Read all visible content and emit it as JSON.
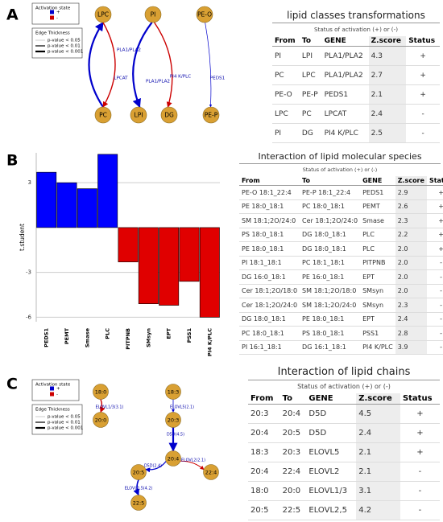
{
  "panel_labels": [
    "A",
    "B",
    "C"
  ],
  "panel_a": {
    "legend": {
      "activation_title": "Activation state",
      "activation_items": [
        "+",
        "-"
      ],
      "thickness_title": "Edge Thickness",
      "thickness_items": [
        "p-value < 0.05",
        "p-value < 0.01",
        "p-value < 0.001"
      ]
    },
    "nodes": [
      "LPC",
      "PI",
      "PE-O",
      "PC",
      "LPI",
      "DG",
      "PE-P"
    ],
    "edges": [
      "PLA1/PLA2",
      "LPCAT",
      "PLA1/PLA2",
      "PI4 K/PLC",
      "PEDS1"
    ],
    "table": {
      "title": "lipid classes transformations",
      "subtitle": "Status of activation (+) or (-)",
      "columns": [
        "From",
        "To",
        "GENE",
        "Z.score",
        "Status"
      ],
      "rows": [
        [
          "PI",
          "LPI",
          "PLA1/PLA2",
          "4.3",
          "+"
        ],
        [
          "PC",
          "LPC",
          "PLA1/PLA2",
          "2.7",
          "+"
        ],
        [
          "PE-O",
          "PE-P",
          "PEDS1",
          "2.1",
          "+"
        ],
        [
          "LPC",
          "PC",
          "LPCAT",
          "2.4",
          "-"
        ],
        [
          "PI",
          "DG",
          "PI4 K/PLC",
          "2.5",
          "-"
        ]
      ]
    }
  },
  "chart_data": {
    "type": "bar",
    "y_label": "t.student",
    "categories": [
      "PEDS1",
      "PEMT",
      "Smase",
      "PLC",
      "PITPNB",
      "SMsyn",
      "EPT",
      "PSS1",
      "PI4 K/PLC"
    ],
    "values": [
      3.7,
      3.0,
      2.6,
      4.9,
      -2.3,
      -5.1,
      -5.2,
      -3.6,
      -6.0
    ],
    "positive_color": "#0000ff",
    "negative_color": "#e00000",
    "ylim": [
      -6.3,
      5
    ],
    "yticks": [
      -6,
      -3,
      3
    ],
    "grid": true
  },
  "panel_b_table": {
    "title": "Interaction of lipid molecular species",
    "subtitle": "Status of activation (+) or (-)",
    "columns": [
      "From",
      "To",
      "GENE",
      "Z.score",
      "Status"
    ],
    "rows": [
      [
        "PE-O 18:1_22:4",
        "PE-P 18:1_22:4",
        "PEDS1",
        "2.9",
        "+"
      ],
      [
        "PE 18:0_18:1",
        "PC 18:0_18:1",
        "PEMT",
        "2.6",
        "+"
      ],
      [
        "SM 18:1;2O/24:0",
        "Cer 18:1;2O/24:0",
        "Smase",
        "2.3",
        "+"
      ],
      [
        "PS 18:0_18:1",
        "DG 18:0_18:1",
        "PLC",
        "2.2",
        "+"
      ],
      [
        "PE 18:0_18:1",
        "DG 18:0_18:1",
        "PLC",
        "2.0",
        "+"
      ],
      [
        "PI 18:1_18:1",
        "PC 18:1_18:1",
        "PITPNB",
        "2.0",
        "-"
      ],
      [
        "DG 16:0_18:1",
        "PE 16:0_18:1",
        "EPT",
        "2.0",
        "-"
      ],
      [
        "Cer 18:1;2O/18:0",
        "SM 18:1;2O/18:0",
        "SMsyn",
        "2.0",
        "-"
      ],
      [
        "Cer 18:1;2O/24:0",
        "SM 18:1;2O/24:0",
        "SMsyn",
        "2.3",
        "-"
      ],
      [
        "DG 18:0_18:1",
        "PE 18:0_18:1",
        "EPT",
        "2.4",
        "-"
      ],
      [
        "PC 18:0_18:1",
        "PS 18:0_18:1",
        "PSS1",
        "2.8",
        "-"
      ],
      [
        "PI 16:1_18:1",
        "DG 16:1_18:1",
        "PI4 K/PLC",
        "3.9",
        "-"
      ]
    ]
  },
  "panel_c": {
    "legend": {
      "activation_title": "Activation state",
      "activation_items": [
        "+",
        "-"
      ],
      "thickness_title": "Edge Thickness",
      "thickness_items": [
        "p-value < 0.05",
        "p-value < 0.01",
        "p-value < 0.001"
      ]
    },
    "nodes": [
      "18:0",
      "20:0",
      "18:3",
      "20:3",
      "20:4",
      "20:5",
      "22:4",
      "22:5"
    ],
    "edges": [
      "ELOVL1/3(3.1)",
      "ELOVL5(2.1)",
      "D5D(4.5)",
      "D5D(2.4)",
      "ELOVL2(2.1)",
      "ELOVL2,5(4.2)"
    ],
    "table": {
      "title": "Interaction of lipid chains",
      "subtitle": "Status of activation (+) or (-)",
      "columns": [
        "From",
        "To",
        "GENE",
        "Z.score",
        "Status"
      ],
      "rows": [
        [
          "20:3",
          "20:4",
          "D5D",
          "4.5",
          "+"
        ],
        [
          "20:4",
          "20:5",
          "D5D",
          "2.4",
          "+"
        ],
        [
          "18:3",
          "20:3",
          "ELOVL5",
          "2.1",
          "+"
        ],
        [
          "20:4",
          "22:4",
          "ELOVL2",
          "2.1",
          "-"
        ],
        [
          "18:0",
          "20:0",
          "ELOVL1/3",
          "3.1",
          "-"
        ],
        [
          "20:5",
          "22:5",
          "ELOVL2,5",
          "4.2",
          "-"
        ]
      ]
    }
  }
}
